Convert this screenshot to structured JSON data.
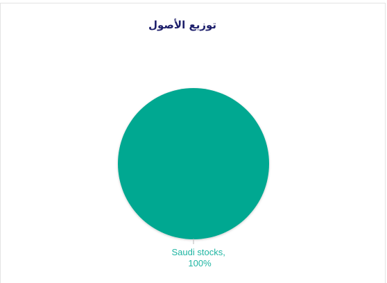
{
  "chart_data": {
    "type": "pie",
    "title": "توزيع الأصول",
    "slices": [
      {
        "label": "Saudi stocks",
        "value": 100,
        "display_label_line1": "Saudi stocks,",
        "display_label_line2": "100%",
        "color": "#00a891"
      }
    ],
    "label_color": "#1fb5a2",
    "title_color": "#1d1f6b",
    "legend": "none"
  }
}
